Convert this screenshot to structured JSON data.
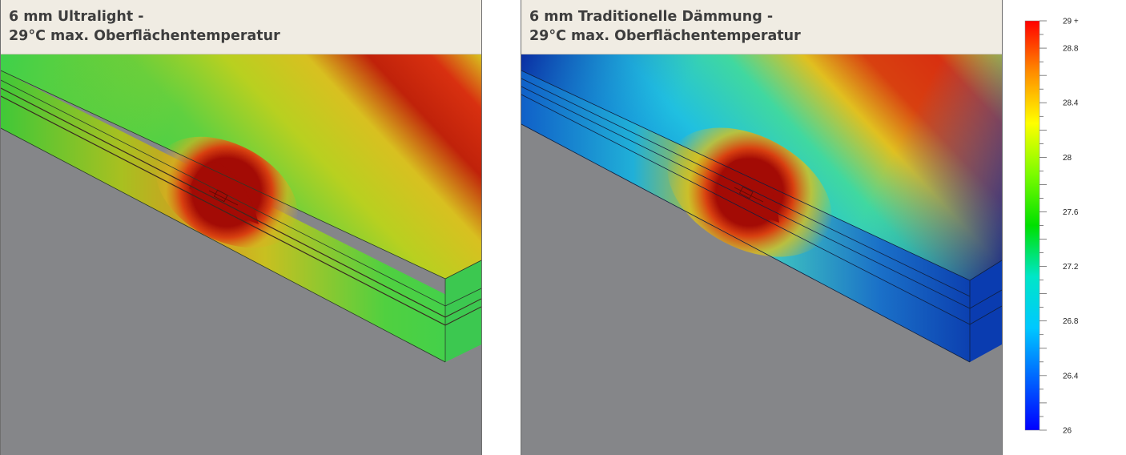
{
  "panels": [
    {
      "title_line1": "6 mm Ultralight -",
      "title_line2": "29°C max. Oberflächentemperatur"
    },
    {
      "title_line1": "6 mm Traditionelle Dämmung -",
      "title_line2": "29°C max. Oberflächentemperatur"
    }
  ],
  "legend": {
    "min": 26,
    "max": 29,
    "labels": [
      "29 +",
      "28.8",
      "28.4",
      "28",
      "27.6",
      "27.2",
      "26.8",
      "26.4",
      "26"
    ],
    "colors": [
      "#ff0000",
      "#ff8c00",
      "#ffff00",
      "#7cfc00",
      "#00e000",
      "#00e6c8",
      "#00c8ff",
      "#0064ff",
      "#0000ff"
    ]
  },
  "colors": {
    "hot": "#a30b05",
    "red": "#e0220a",
    "yellow": "#d8d01a",
    "green": "#3fd14a",
    "cyan": "#20d0e8",
    "blue": "#0a3ad0",
    "deep_blue": "#06148a",
    "floor": "#858689",
    "title_bg": "#f0ece3"
  }
}
